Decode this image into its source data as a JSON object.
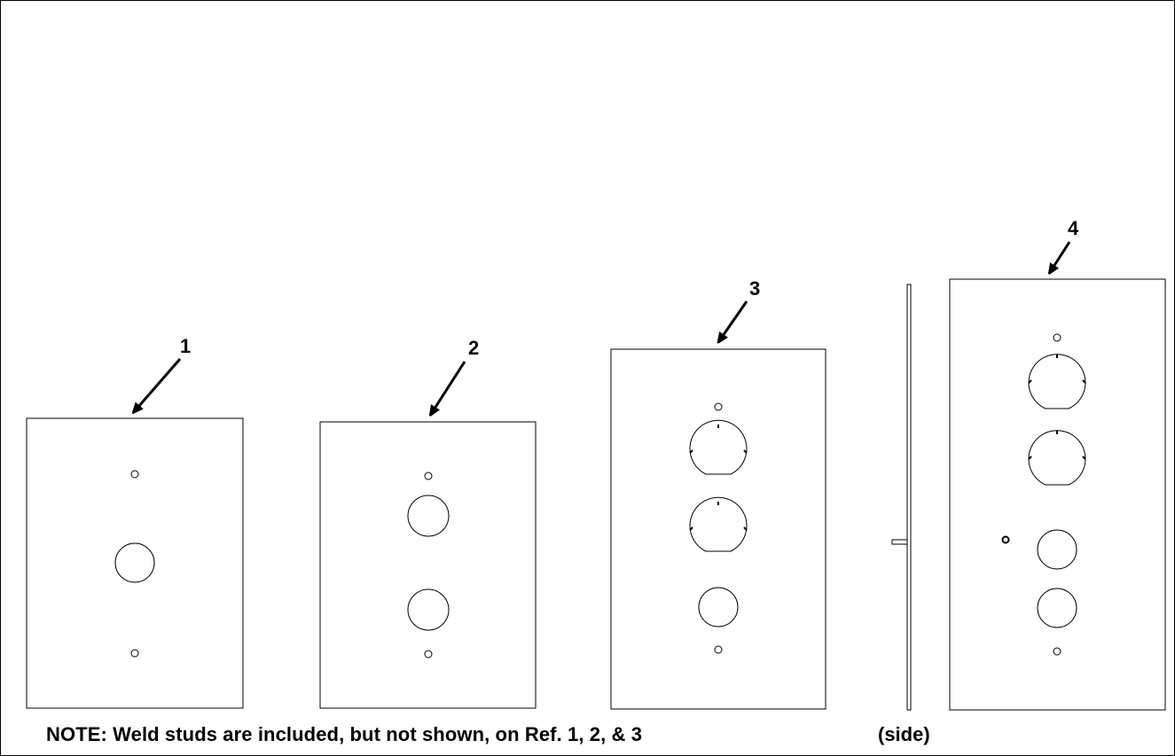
{
  "refs": {
    "ref1": "1",
    "ref2": "2",
    "ref3": "3",
    "ref4": "4"
  },
  "note": "NOTE:  Weld studs are included, but not shown, on Ref. 1, 2, & 3",
  "side_label": "(side)",
  "colors": {
    "line": "#000000",
    "background": "#ffffff"
  },
  "icons": {
    "pointer": "arrow-icon"
  }
}
